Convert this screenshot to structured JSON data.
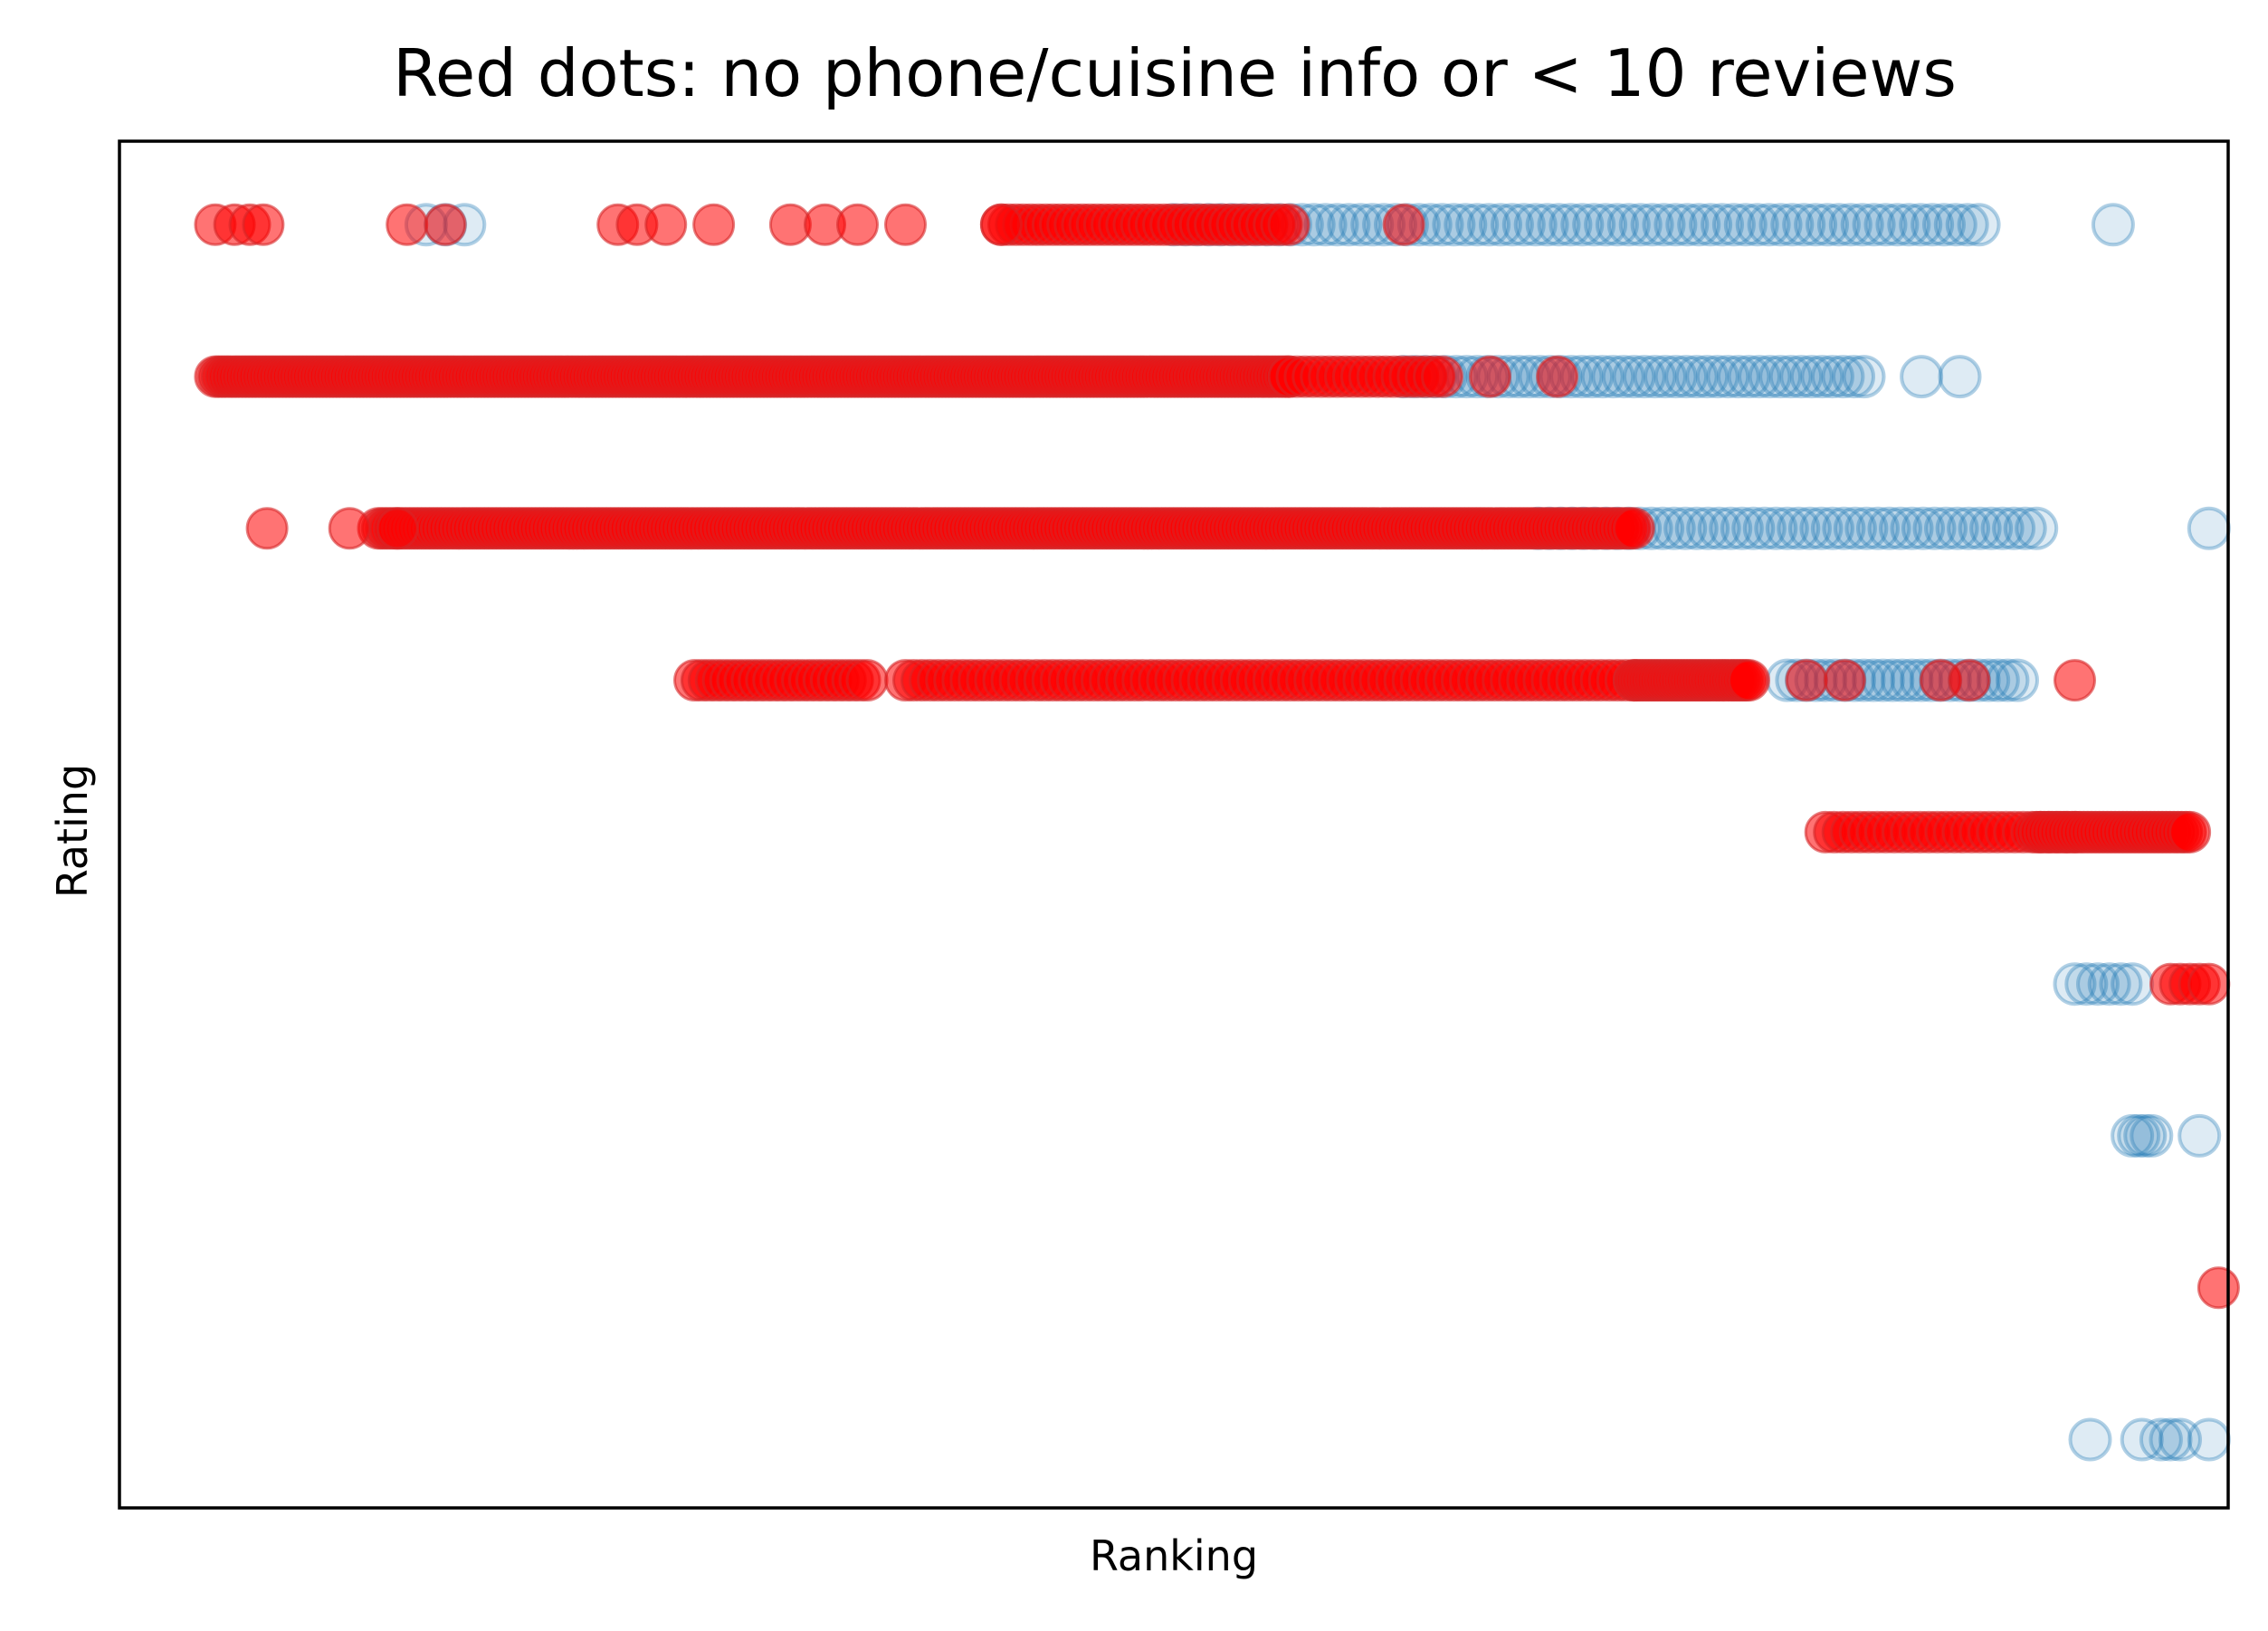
{
  "chart_data": {
    "type": "scatter",
    "title": "Red dots: no phone/cuisine info or < 10 reviews",
    "xlabel": "Ranking",
    "ylabel": "Rating",
    "xticks_visible": false,
    "yticks_visible": false,
    "grid": false,
    "legend": "none",
    "xlim": [
      -0.05,
      1.05
    ],
    "ylim": [
      0.55,
      9.55
    ],
    "colors": {
      "flagged": "#ff0000",
      "other": "#1f77b4",
      "flagged_edge": "#d62728"
    },
    "series": [
      {
        "key": "other",
        "marker": "hollow",
        "rows": [
          {
            "y": 9,
            "segments": [
              [
                0.11,
                0.13,
                3
              ],
              [
                0.5,
                0.92,
                70
              ]
            ],
            "points": [
              0.99
            ]
          },
          {
            "y": 8,
            "segments": [
              [
                0.62,
                0.86,
                45
              ]
            ],
            "points": [
              0.89,
              0.91
            ]
          },
          {
            "y": 7,
            "segments": [
              [
                0.69,
                0.95,
                45
              ]
            ],
            "points": [
              1.04
            ]
          },
          {
            "y": 6,
            "segments": [
              [
                0.82,
                0.94,
                25
              ]
            ],
            "points": []
          },
          {
            "y": 4,
            "segments": [
              [
                0.97,
                1.0,
                6
              ]
            ],
            "points": []
          },
          {
            "y": 3,
            "segments": [
              [
                1.0,
                1.01,
                4
              ]
            ],
            "points": [
              1.035
            ]
          },
          {
            "y": 1,
            "segments": [
              [
                1.015,
                1.025,
                3
              ]
            ],
            "points": [
              0.978,
              1.005,
              1.04
            ]
          }
        ]
      },
      {
        "key": "flagged",
        "marker": "filled",
        "rows": [
          {
            "y": 9,
            "segments": [
              [
                0.41,
                0.56,
                40
              ]
            ],
            "points": [
              0.0,
              0.01,
              0.018,
              0.025,
              0.1,
              0.12,
              0.21,
              0.22,
              0.235,
              0.26,
              0.3,
              0.318,
              0.335,
              0.36,
              0.41,
              0.62
            ]
          },
          {
            "y": 8,
            "segments": [
              [
                0.0,
                0.56,
                320
              ],
              [
                0.56,
                0.64,
                20
              ]
            ],
            "points": [
              0.665,
              0.7
            ]
          },
          {
            "y": 7,
            "segments": [
              [
                0.085,
                0.74,
                320
              ]
            ],
            "points": [
              0.027,
              0.07,
              0.095
            ]
          },
          {
            "y": 6,
            "segments": [
              [
                0.25,
                0.34,
                25
              ],
              [
                0.36,
                0.74,
                90
              ],
              [
                0.74,
                0.8,
                40
              ]
            ],
            "points": [
              0.83,
              0.85,
              0.9,
              0.915,
              0.97
            ]
          },
          {
            "y": 5,
            "segments": [
              [
                0.84,
                0.97,
                30
              ],
              [
                0.95,
                1.03,
                40
              ]
            ],
            "points": []
          },
          {
            "y": 4,
            "segments": [
              [
                1.02,
                1.04,
                5
              ]
            ],
            "points": []
          },
          {
            "y": 2,
            "segments": [],
            "points": [
              1.045
            ]
          }
        ]
      }
    ]
  }
}
